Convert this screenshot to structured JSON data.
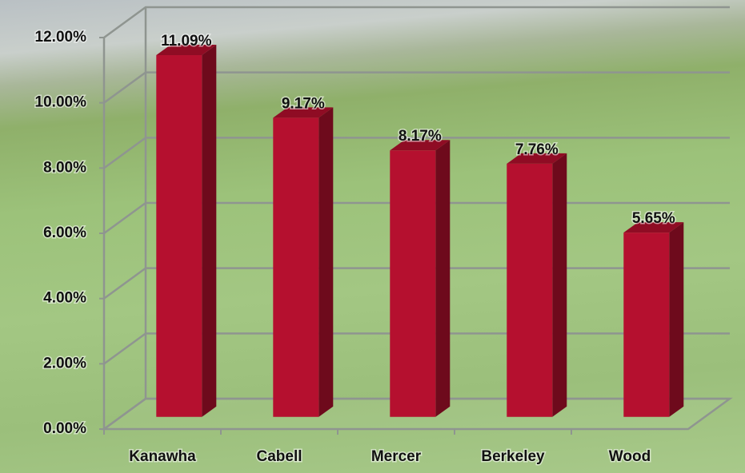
{
  "chart_data": {
    "type": "bar",
    "categories": [
      "Kanawha",
      "Cabell",
      "Mercer",
      "Berkeley",
      "Wood"
    ],
    "values": [
      11.09,
      9.17,
      8.17,
      7.76,
      5.65
    ],
    "value_labels": [
      "11.09%",
      "9.17%",
      "8.17%",
      "7.76%",
      "5.65%"
    ],
    "color": "#b5102f",
    "ylim": [
      0,
      12
    ],
    "yticks": [
      {
        "value": 0,
        "label": "0.00%"
      },
      {
        "value": 2,
        "label": "2.00%"
      },
      {
        "value": 4,
        "label": "4.00%"
      },
      {
        "value": 6,
        "label": "6.00%"
      },
      {
        "value": 8,
        "label": "8.00%"
      },
      {
        "value": 10,
        "label": "10.00%"
      },
      {
        "value": 12,
        "label": "12.00%"
      }
    ],
    "grid": true
  }
}
